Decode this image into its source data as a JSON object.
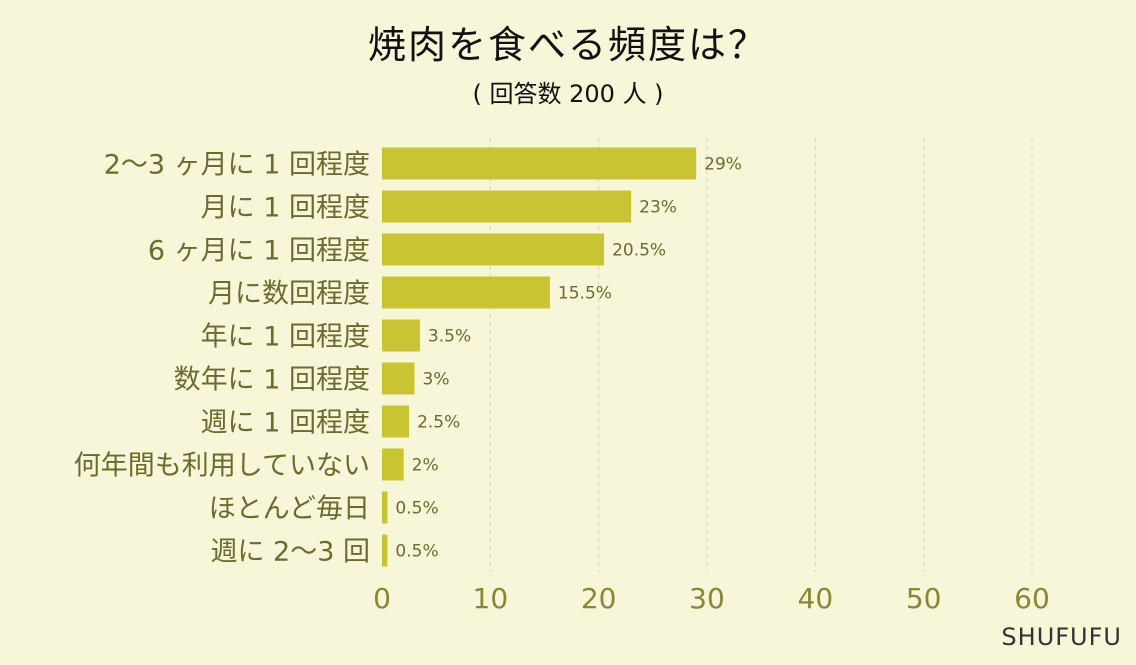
{
  "title": "焼肉を食べる頻度は？",
  "subtitle": "( 回答数 200 人 )",
  "brand": "SHUFUFU",
  "colors": {
    "bar": "#c9c433",
    "background": "#f7f6d8",
    "grid": "#d8d6b8"
  },
  "chart_data": {
    "type": "bar",
    "orientation": "horizontal",
    "categories": [
      "2〜3 ヶ月に 1 回程度",
      "月に 1 回程度",
      "6 ヶ月に 1 回程度",
      "月に数回程度",
      "年に 1 回程度",
      "数年に 1 回程度",
      "週に 1 回程度",
      "何年間も利用していない",
      "ほとんど毎日",
      "週に 2〜3 回"
    ],
    "values": [
      29,
      23,
      20.5,
      15.5,
      3.5,
      3,
      2.5,
      2,
      0.5,
      0.5
    ],
    "value_labels": [
      "29%",
      "23%",
      "20.5%",
      "15.5%",
      "3.5%",
      "3%",
      "2.5%",
      "2%",
      "0.5%",
      "0.5%"
    ],
    "xlim": [
      0,
      60
    ],
    "xticks": [
      "0",
      "10",
      "20",
      "30",
      "40",
      "50",
      "60"
    ],
    "grid": true,
    "legend": "none"
  }
}
